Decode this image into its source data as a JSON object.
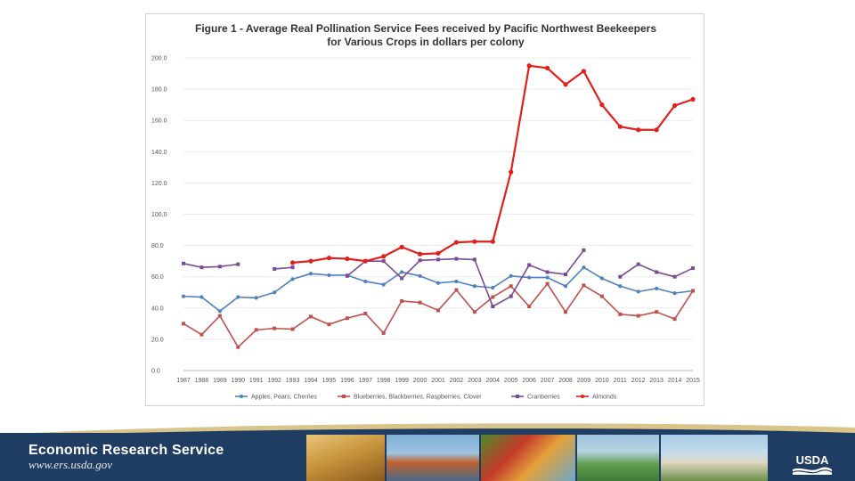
{
  "chart_data": {
    "type": "line",
    "title": "Figure 1 -  Average Real Pollination Service Fees received by Pacific Northwest Beekeepers",
    "title_line2": "for Various Crops in dollars per colony",
    "xlabel": "",
    "ylabel": "",
    "ylim": [
      0,
      200
    ],
    "ytick_labels": [
      "0.0",
      "20.0",
      "40.0",
      "60.0",
      "80.0",
      "100.0",
      "120.0",
      "140.0",
      "160.0",
      "180.0",
      "200.0"
    ],
    "categories": [
      "1987",
      "1988",
      "1989",
      "1990",
      "1991",
      "1992",
      "1993",
      "1994",
      "1995",
      "1996",
      "1997",
      "1998",
      "1999",
      "2000",
      "2001",
      "2002",
      "2003",
      "2004",
      "2005",
      "2006",
      "2007",
      "2008",
      "2009",
      "2010",
      "2011",
      "2012",
      "2013",
      "2014",
      "2015"
    ],
    "legend_position": "bottom",
    "series": [
      {
        "name": "Apples, Pears, Cherries",
        "color": "#4f81bd",
        "values": [
          47.5,
          47,
          38,
          47,
          46.5,
          50,
          58.5,
          62,
          61,
          61,
          57,
          55,
          63,
          60.5,
          56,
          57,
          54,
          53,
          60.5,
          59.5,
          59.5,
          54,
          66,
          59,
          54,
          50.5,
          52.5,
          49.5,
          51
        ]
      },
      {
        "name": "Blueberries, Blackberries, Raspberries, Clover",
        "color": "#c0504d",
        "values": [
          30,
          23,
          35,
          15,
          26,
          27,
          26.5,
          34.5,
          29.5,
          33.5,
          36.5,
          24,
          44.5,
          43.5,
          38.5,
          51.5,
          37.5,
          47,
          54,
          41,
          55.5,
          37.5,
          54.5,
          47.5,
          36,
          35,
          37.5,
          33,
          51
        ]
      },
      {
        "name": "Cranberries",
        "color": "#7a4b93",
        "values": [
          68.5,
          66,
          66.5,
          68,
          null,
          65,
          66,
          null,
          null,
          60.5,
          70,
          70,
          59,
          70.5,
          71,
          71.5,
          71,
          41,
          47.5,
          67.5,
          63,
          61.5,
          77,
          null,
          60,
          68,
          63,
          60,
          65.5
        ]
      },
      {
        "name": "Almonds",
        "color": "#e0201c",
        "values": [
          null,
          null,
          null,
          null,
          null,
          null,
          69,
          70,
          72,
          71.5,
          70,
          73,
          79,
          74.5,
          75,
          82,
          82.5,
          82.5,
          127,
          195,
          193.5,
          183,
          191.5,
          170,
          156,
          154,
          154,
          169.5,
          173.5
        ]
      }
    ]
  },
  "footer": {
    "org_name": "Economic Research Service",
    "url": "www.ers.usda.gov",
    "logo_text": "USDA"
  }
}
